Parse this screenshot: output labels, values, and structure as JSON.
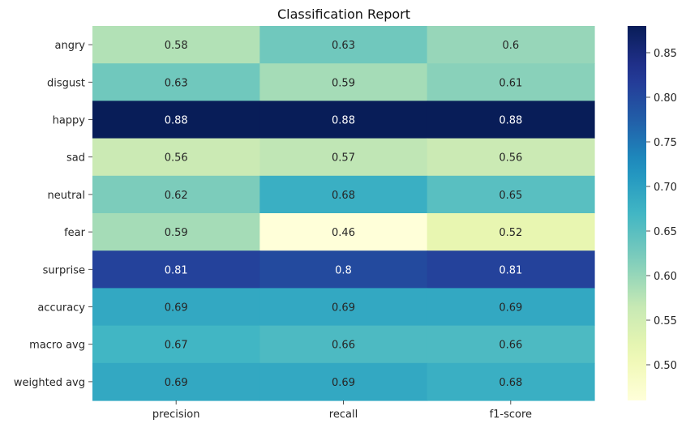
{
  "chart_data": {
    "type": "heatmap",
    "title": "Classification Report",
    "xlabel": "",
    "ylabel": "",
    "columns": [
      "precision",
      "recall",
      "f1-score"
    ],
    "rows": [
      "angry",
      "disgust",
      "happy",
      "sad",
      "neutral",
      "fear",
      "surprise",
      "accuracy",
      "macro avg",
      "weighted avg"
    ],
    "values": [
      [
        0.58,
        0.63,
        0.6
      ],
      [
        0.63,
        0.59,
        0.61
      ],
      [
        0.88,
        0.88,
        0.88
      ],
      [
        0.56,
        0.57,
        0.56
      ],
      [
        0.62,
        0.68,
        0.65
      ],
      [
        0.59,
        0.46,
        0.52
      ],
      [
        0.81,
        0.8,
        0.81
      ],
      [
        0.69,
        0.69,
        0.69
      ],
      [
        0.67,
        0.66,
        0.66
      ],
      [
        0.69,
        0.69,
        0.68
      ]
    ],
    "colormap": "YlGnBu",
    "colorbar": {
      "vmin": 0.46,
      "vmax": 0.88,
      "ticks": [
        0.5,
        0.55,
        0.6,
        0.65,
        0.7,
        0.75,
        0.8,
        0.85
      ],
      "tick_labels": [
        "0.50",
        "0.55",
        "0.60",
        "0.65",
        "0.70",
        "0.75",
        "0.80",
        "0.85"
      ]
    }
  }
}
